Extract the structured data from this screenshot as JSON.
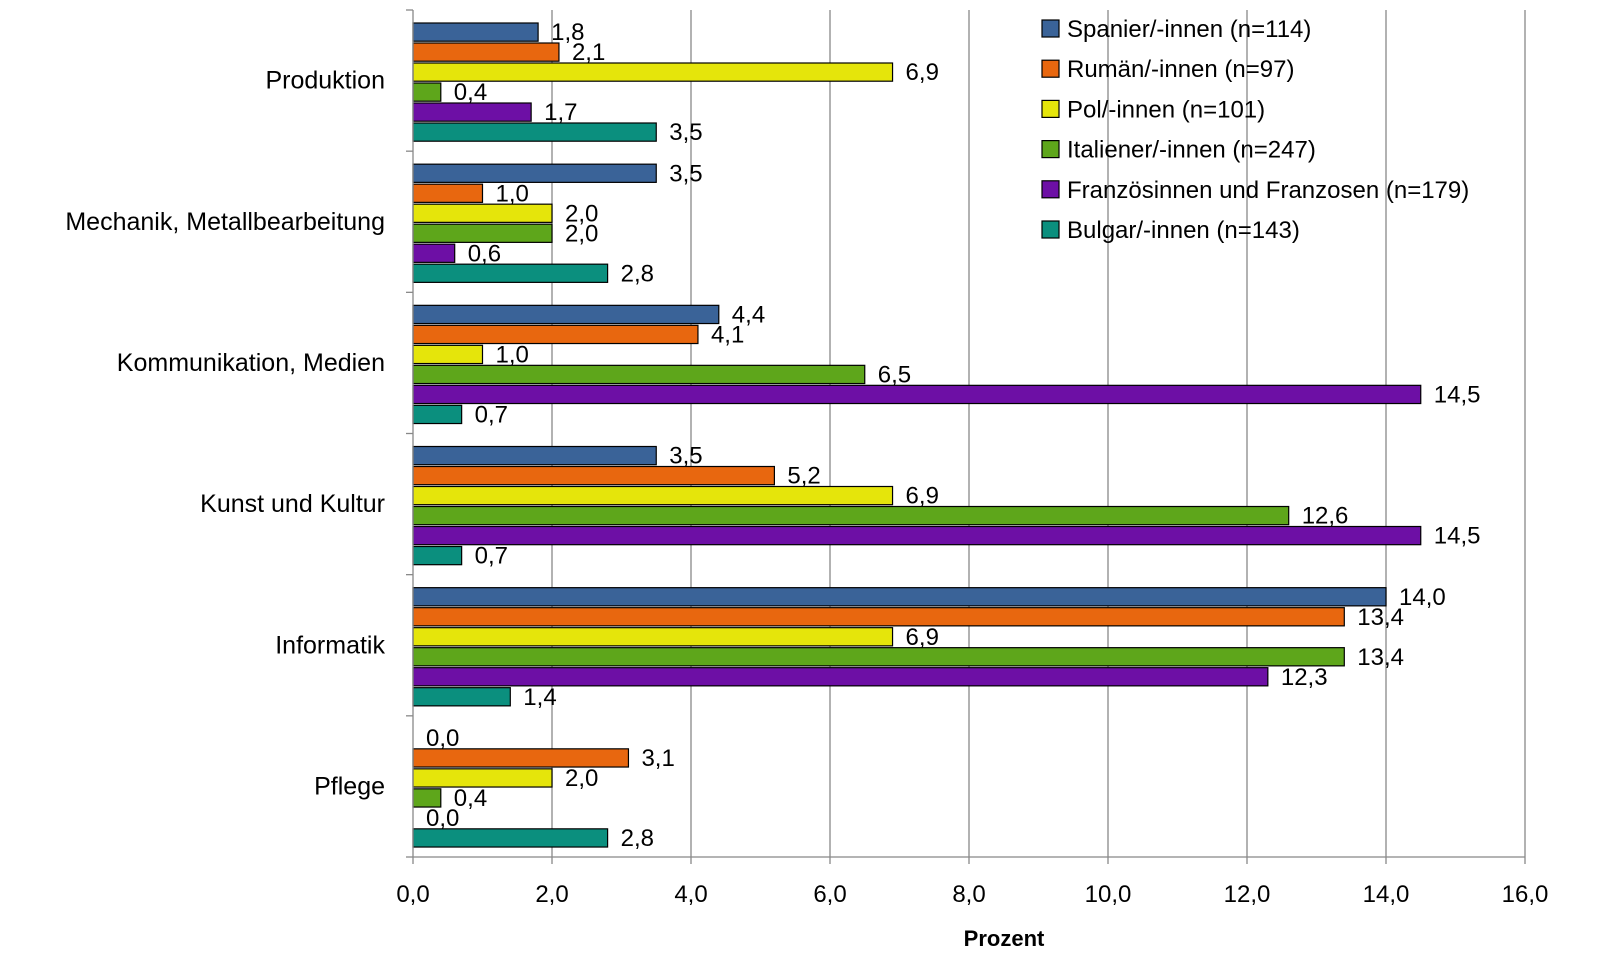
{
  "chart_data": {
    "type": "bar",
    "orientation": "horizontal",
    "title": "",
    "xlabel": "Prozent",
    "ylabel": "",
    "xlim": [
      0,
      16
    ],
    "x_ticks": [
      "0,0",
      "2,0",
      "4,0",
      "6,0",
      "8,0",
      "10,0",
      "12,0",
      "14,0",
      "16,0"
    ],
    "grid": "vertical major gridlines",
    "legend_position": "top-right",
    "categories": [
      "Produktion",
      "Mechanik, Metallbearbeitung",
      "Kommunikation, Medien",
      "Kunst und Kultur",
      "Informatik",
      "Pflege"
    ],
    "series": [
      {
        "name": "Spanier/-innen (n=114)",
        "color": "#3a6398",
        "values": [
          1.8,
          3.5,
          4.4,
          3.5,
          14.0,
          0.0
        ],
        "labels": [
          "1,8",
          "3,5",
          "4,4",
          "3,5",
          "14,0",
          "0,0"
        ]
      },
      {
        "name": "Rumän/-innen (n=97)",
        "color": "#e8670f",
        "values": [
          2.1,
          1.0,
          4.1,
          5.2,
          13.4,
          3.1
        ],
        "labels": [
          "2,1",
          "1,0",
          "4,1",
          "5,2",
          "13,4",
          "3,1"
        ]
      },
      {
        "name": "Pol/-innen (n=101)",
        "color": "#e5e50b",
        "values": [
          6.9,
          2.0,
          1.0,
          6.9,
          6.9,
          2.0
        ],
        "labels": [
          "6,9",
          "2,0",
          "1,0",
          "6,9",
          "6,9",
          "2,0"
        ]
      },
      {
        "name": "Italiener/-innen (n=247)",
        "color": "#5ea61b",
        "values": [
          0.4,
          2.0,
          6.5,
          12.6,
          13.4,
          0.4
        ],
        "labels": [
          "0,4",
          "2,0",
          "6,5",
          "12,6",
          "13,4",
          "0,4"
        ]
      },
      {
        "name": "Französinnen und Franzosen (n=179)",
        "color": "#6d0fa5",
        "values": [
          1.7,
          0.6,
          14.5,
          14.5,
          12.3,
          0.0
        ],
        "labels": [
          "1,7",
          "0,6",
          "14,5",
          "14,5",
          "12,3",
          "0,0"
        ]
      },
      {
        "name": "Bulgar/-innen (n=143)",
        "color": "#0b8f7e",
        "values": [
          3.5,
          2.8,
          0.7,
          0.7,
          1.4,
          2.8
        ],
        "labels": [
          "3,5",
          "2,8",
          "0,7",
          "0,7",
          "1,4",
          "2,8"
        ]
      }
    ]
  }
}
